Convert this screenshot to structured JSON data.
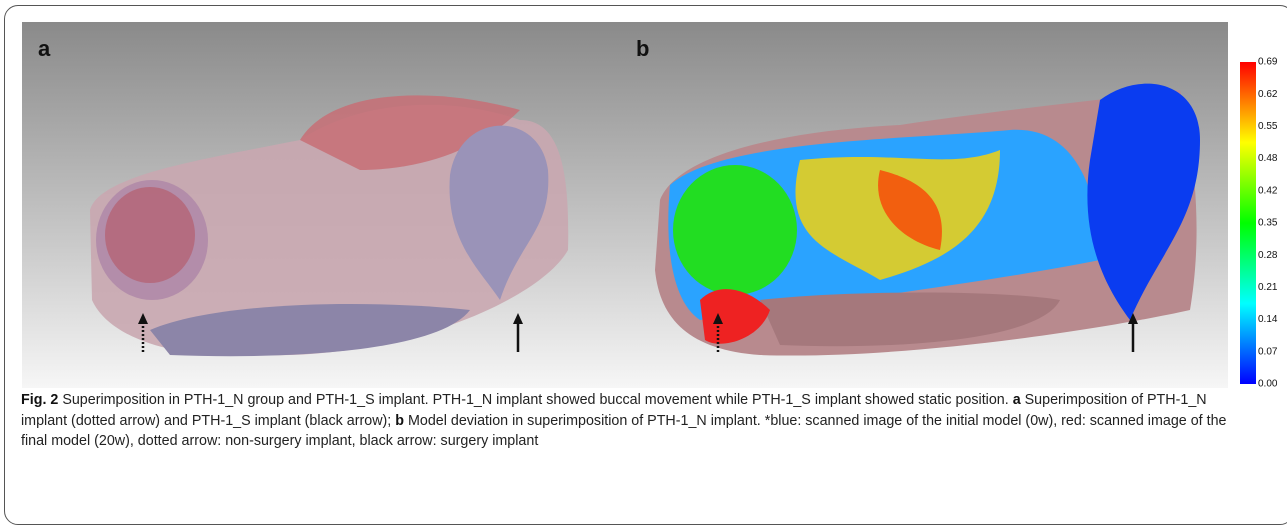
{
  "figure": {
    "panels": [
      {
        "label": "a"
      },
      {
        "label": "b"
      }
    ],
    "colorbar": {
      "ticks": [
        "0.69",
        "0.62",
        "0.55",
        "0.48",
        "0.42",
        "0.35",
        "0.28",
        "0.21",
        "0.14",
        "0.07",
        "0.00"
      ]
    },
    "caption": {
      "label": "Fig. 2",
      "segments": [
        " Superimposition in PTH-1_N group and PTH-1_S implant. PTH-1_N implant showed buccal movement while PTH-1_S implant showed static position. ",
        "a",
        " Superimposition of PTH-1_N implant (dotted arrow) and PTH-1_S implant (black arrow); ",
        "b",
        " Model deviation in superimposition of PTH-1_N implant. *blue: scanned image of the initial model (0w), red: scanned image of the final model (20w), dotted arrow: non-surgery implant, black arrow: surgery implant"
      ]
    }
  }
}
